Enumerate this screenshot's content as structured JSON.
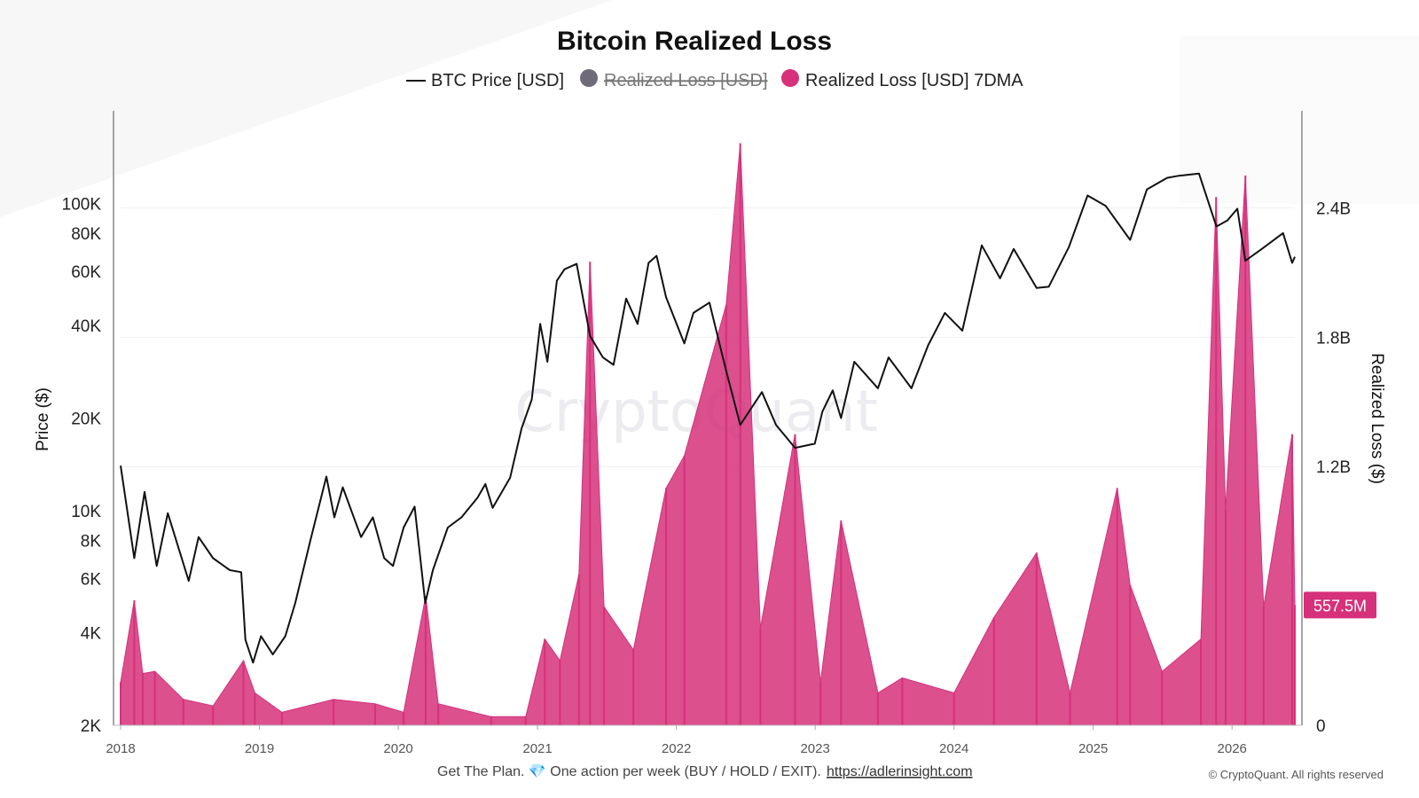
{
  "colors": {
    "price_line": "#111111",
    "realized_loss": "#6e6a78",
    "realized_loss_7dma": "#d6317a",
    "grid": "#eeeeee",
    "badge": "#d6317a"
  },
  "chart_data": {
    "type": "bar",
    "title": "Bitcoin Realized Loss",
    "legend": [
      {
        "label": "BTC Price [USD]",
        "marker": "line",
        "color": "#111111",
        "hidden": false
      },
      {
        "label": "Realized Loss [USD]",
        "marker": "dot",
        "color": "#6e6a78",
        "hidden": true
      },
      {
        "label": "Realized Loss [USD] 7DMA",
        "marker": "dot",
        "color": "#d6317a",
        "hidden": false
      }
    ],
    "legend_position": "top-center",
    "watermark": "CryptoQuant",
    "x_axis": {
      "range": [
        "2018-01-01",
        "2026-06-15"
      ],
      "tick_labels": [
        "2018",
        "2019",
        "2020",
        "2021",
        "2022",
        "2023",
        "2024",
        "2025",
        "2026"
      ]
    },
    "y_left": {
      "title": "Price ($)",
      "scale": "log",
      "range": [
        2000,
        200000
      ],
      "tick_values": [
        2000,
        4000,
        6000,
        8000,
        10000,
        20000,
        40000,
        60000,
        80000,
        100000
      ],
      "tick_labels": [
        "2K",
        "4K",
        "6K",
        "8K",
        "10K",
        "20K",
        "40K",
        "60K",
        "80K",
        "100K"
      ]
    },
    "y_right": {
      "title": "Realized Loss ($)",
      "scale": "linear",
      "range": [
        0,
        2.85
      ],
      "unit": "B USD",
      "tick_values": [
        0,
        1.2,
        1.8,
        2.4
      ],
      "tick_labels": [
        "0",
        "1.2B",
        "1.8B",
        "2.4B"
      ]
    },
    "grid": true,
    "last_value_label": "557.5M",
    "series": [
      {
        "name": "BTC Price [USD]",
        "axis": "left",
        "kind": "line",
        "points": [
          [
            "2018-01-01",
            14000
          ],
          [
            "2018-02-06",
            7000
          ],
          [
            "2018-03-05",
            11500
          ],
          [
            "2018-04-06",
            6600
          ],
          [
            "2018-05-05",
            9800
          ],
          [
            "2018-06-29",
            5900
          ],
          [
            "2018-07-25",
            8200
          ],
          [
            "2018-09-01",
            7000
          ],
          [
            "2018-10-15",
            6400
          ],
          [
            "2018-11-14",
            6300
          ],
          [
            "2018-11-25",
            3800
          ],
          [
            "2018-12-15",
            3200
          ],
          [
            "2019-01-05",
            3900
          ],
          [
            "2019-02-05",
            3400
          ],
          [
            "2019-03-10",
            3900
          ],
          [
            "2019-04-05",
            5000
          ],
          [
            "2019-05-15",
            8000
          ],
          [
            "2019-06-26",
            12900
          ],
          [
            "2019-07-17",
            9500
          ],
          [
            "2019-08-08",
            11900
          ],
          [
            "2019-09-25",
            8200
          ],
          [
            "2019-10-26",
            9500
          ],
          [
            "2019-11-25",
            7000
          ],
          [
            "2019-12-18",
            6600
          ],
          [
            "2020-01-15",
            8800
          ],
          [
            "2020-02-13",
            10300
          ],
          [
            "2020-03-12",
            5000
          ],
          [
            "2020-04-01",
            6400
          ],
          [
            "2020-05-10",
            8800
          ],
          [
            "2020-06-15",
            9500
          ],
          [
            "2020-07-27",
            11000
          ],
          [
            "2020-08-17",
            12200
          ],
          [
            "2020-09-05",
            10200
          ],
          [
            "2020-10-21",
            12800
          ],
          [
            "2020-11-20",
            18500
          ],
          [
            "2020-12-17",
            23000
          ],
          [
            "2021-01-08",
            40500
          ],
          [
            "2021-01-27",
            30500
          ],
          [
            "2021-02-21",
            56000
          ],
          [
            "2021-03-13",
            61000
          ],
          [
            "2021-04-14",
            63500
          ],
          [
            "2021-05-19",
            37000
          ],
          [
            "2021-06-22",
            31500
          ],
          [
            "2021-07-20",
            29800
          ],
          [
            "2021-08-22",
            49000
          ],
          [
            "2021-09-21",
            40500
          ],
          [
            "2021-10-20",
            64000
          ],
          [
            "2021-11-10",
            67500
          ],
          [
            "2021-12-05",
            49500
          ],
          [
            "2022-01-22",
            35000
          ],
          [
            "2022-02-15",
            44000
          ],
          [
            "2022-03-29",
            47500
          ],
          [
            "2022-05-12",
            28500
          ],
          [
            "2022-06-18",
            19000
          ],
          [
            "2022-08-14",
            24300
          ],
          [
            "2022-09-20",
            19000
          ],
          [
            "2022-11-09",
            16000
          ],
          [
            "2022-12-31",
            16500
          ],
          [
            "2023-01-20",
            21000
          ],
          [
            "2023-02-16",
            24600
          ],
          [
            "2023-03-10",
            20000
          ],
          [
            "2023-04-14",
            30500
          ],
          [
            "2023-06-15",
            25000
          ],
          [
            "2023-07-13",
            31500
          ],
          [
            "2023-09-11",
            25000
          ],
          [
            "2023-10-25",
            34500
          ],
          [
            "2023-12-08",
            44000
          ],
          [
            "2024-01-23",
            38500
          ],
          [
            "2024-03-14",
            73000
          ],
          [
            "2024-05-01",
            57000
          ],
          [
            "2024-06-06",
            71000
          ],
          [
            "2024-08-05",
            53000
          ],
          [
            "2024-09-06",
            53500
          ],
          [
            "2024-10-29",
            72000
          ],
          [
            "2024-12-17",
            106000
          ],
          [
            "2025-02-03",
            98000
          ],
          [
            "2025-04-08",
            76000
          ],
          [
            "2025-05-22",
            111000
          ],
          [
            "2025-07-14",
            121000
          ],
          [
            "2025-08-14",
            123000
          ],
          [
            "2025-10-06",
            125000
          ],
          [
            "2025-11-21",
            84000
          ],
          [
            "2025-12-20",
            88000
          ],
          [
            "2026-01-15",
            96000
          ],
          [
            "2026-02-05",
            65000
          ],
          [
            "2026-03-20",
            71000
          ],
          [
            "2026-05-15",
            80000
          ],
          [
            "2026-06-08",
            64000
          ],
          [
            "2026-06-15",
            67000
          ]
        ]
      },
      {
        "name": "Realized Loss [USD] 7DMA",
        "axis": "right",
        "kind": "area",
        "unit": "B USD",
        "points": [
          [
            "2018-01-01",
            0.2
          ],
          [
            "2018-02-06",
            0.58
          ],
          [
            "2018-02-28",
            0.24
          ],
          [
            "2018-04-01",
            0.25
          ],
          [
            "2018-06-15",
            0.12
          ],
          [
            "2018-09-01",
            0.09
          ],
          [
            "2018-11-20",
            0.3
          ],
          [
            "2018-12-20",
            0.15
          ],
          [
            "2019-03-01",
            0.06
          ],
          [
            "2019-07-15",
            0.12
          ],
          [
            "2019-11-01",
            0.1
          ],
          [
            "2020-01-15",
            0.06
          ],
          [
            "2020-03-13",
            0.6
          ],
          [
            "2020-04-15",
            0.1
          ],
          [
            "2020-09-01",
            0.04
          ],
          [
            "2020-12-01",
            0.04
          ],
          [
            "2021-01-20",
            0.4
          ],
          [
            "2021-03-01",
            0.3
          ],
          [
            "2021-04-20",
            0.7
          ],
          [
            "2021-05-19",
            2.15
          ],
          [
            "2021-06-25",
            0.55
          ],
          [
            "2021-09-10",
            0.35
          ],
          [
            "2021-12-05",
            1.1
          ],
          [
            "2022-01-22",
            1.25
          ],
          [
            "2022-05-12",
            1.95
          ],
          [
            "2022-06-18",
            2.7
          ],
          [
            "2022-08-10",
            0.45
          ],
          [
            "2022-11-09",
            1.35
          ],
          [
            "2023-01-15",
            0.2
          ],
          [
            "2023-03-10",
            0.95
          ],
          [
            "2023-06-15",
            0.15
          ],
          [
            "2023-08-18",
            0.22
          ],
          [
            "2024-01-01",
            0.15
          ],
          [
            "2024-04-15",
            0.5
          ],
          [
            "2024-08-05",
            0.8
          ],
          [
            "2024-11-01",
            0.15
          ],
          [
            "2025-03-05",
            1.1
          ],
          [
            "2025-04-08",
            0.65
          ],
          [
            "2025-07-01",
            0.25
          ],
          [
            "2025-10-11",
            0.4
          ],
          [
            "2025-11-20",
            2.45
          ],
          [
            "2025-12-15",
            1.0
          ],
          [
            "2026-02-05",
            2.55
          ],
          [
            "2026-03-25",
            0.55
          ],
          [
            "2026-06-08",
            1.35
          ],
          [
            "2026-06-15",
            0.5575
          ]
        ]
      }
    ]
  },
  "footer": {
    "text": "Get The Plan. 💎 One action per week (BUY / HOLD / EXIT).",
    "link_text": "https://adlerinsight.com",
    "copyright": "© CryptoQuant. All rights reserved"
  }
}
